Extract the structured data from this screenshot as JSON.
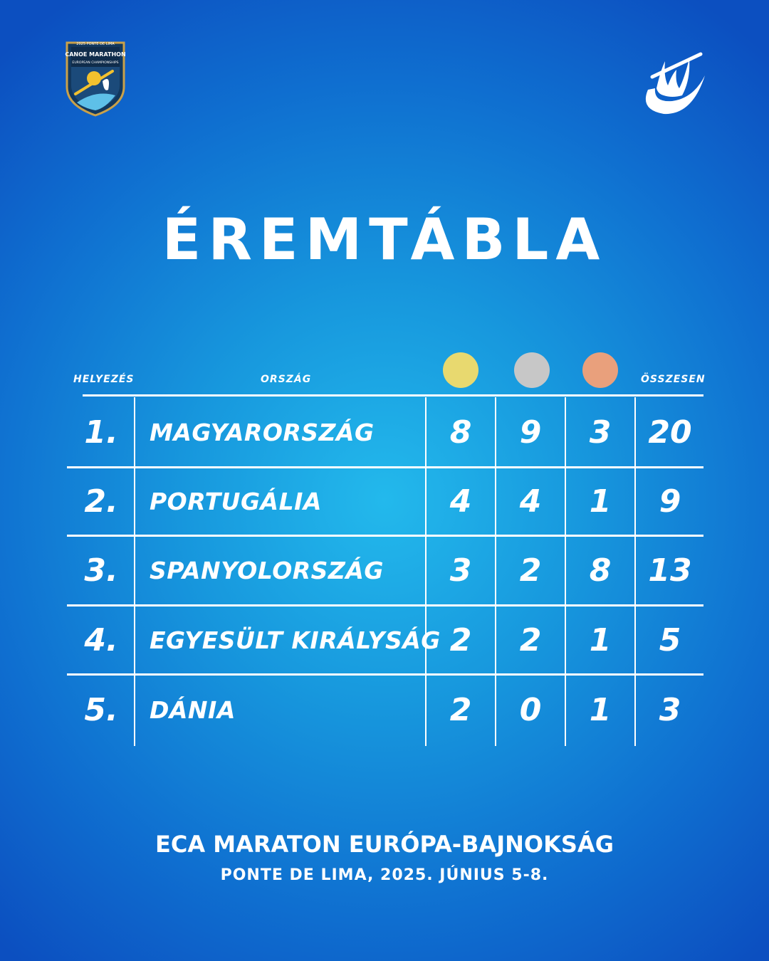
{
  "logos": {
    "left": {
      "icon": "canoe-marathon-badge-icon",
      "text_top": "2025 PONTE DE LIMA",
      "text_main": "CANOE MARATHON",
      "text_sub": "EUROPEAN CHAMPIONSHIPS"
    },
    "right": {
      "icon": "kayak-federation-emblem-icon"
    }
  },
  "title": "ÉREMTÁBLA",
  "table": {
    "headers": {
      "rank": "HELYEZÉS",
      "country": "ORSZÁG",
      "total": "ÖSSZESEN"
    },
    "medals": [
      {
        "name": "gold",
        "color": "#e8d96f"
      },
      {
        "name": "silver",
        "color": "#c7c7c7"
      },
      {
        "name": "bronze",
        "color": "#e9a07c"
      }
    ],
    "rows": [
      {
        "rank": "1.",
        "country": "MAGYARORSZÁG",
        "gold": "8",
        "silver": "9",
        "bronze": "3",
        "total": "20"
      },
      {
        "rank": "2.",
        "country": "PORTUGÁLIA",
        "gold": "4",
        "silver": "4",
        "bronze": "1",
        "total": "9"
      },
      {
        "rank": "3.",
        "country": "SPANYOLORSZÁG",
        "gold": "3",
        "silver": "2",
        "bronze": "8",
        "total": "13"
      },
      {
        "rank": "4.",
        "country": "EGYESÜLT KIRÁLYSÁG",
        "gold": "2",
        "silver": "2",
        "bronze": "1",
        "total": "5"
      },
      {
        "rank": "5.",
        "country": "DÁNIA",
        "gold": "2",
        "silver": "0",
        "bronze": "1",
        "total": "3"
      }
    ]
  },
  "footer": {
    "event": "ECA MARATON EURÓPA-BAJNOKSÁG",
    "place_date": "PONTE DE LIMA, 2025. JÚNIUS 5-8."
  },
  "colors": {
    "text": "#ffffff",
    "bg_center": "#23b9ec",
    "bg_edge": "#0c4fc0"
  }
}
